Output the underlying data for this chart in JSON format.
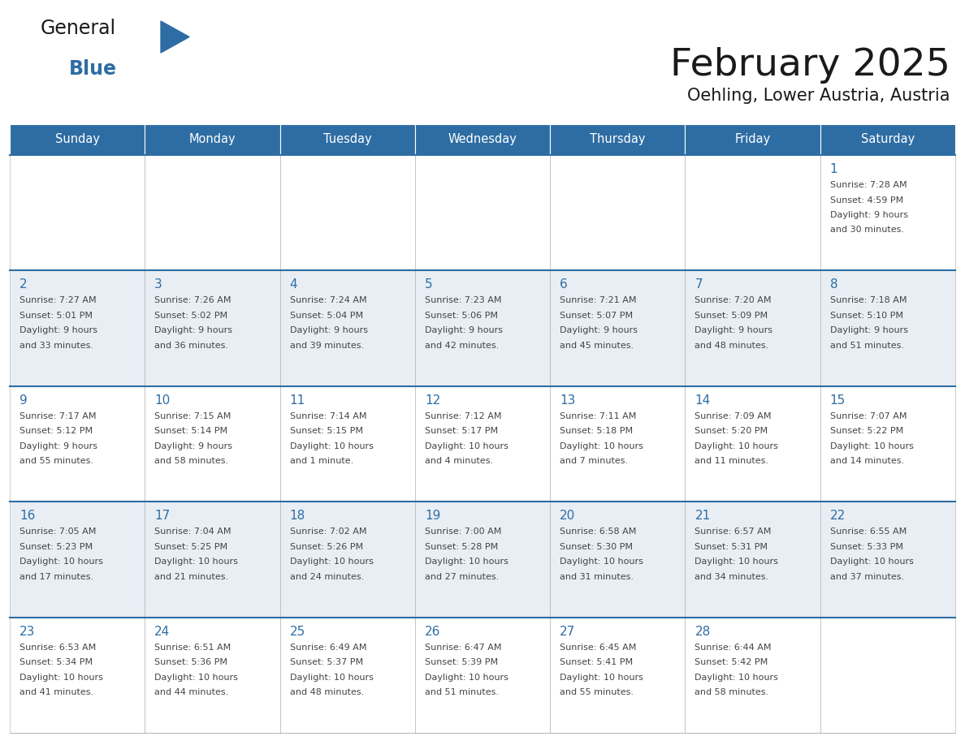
{
  "title": "February 2025",
  "subtitle": "Oehling, Lower Austria, Austria",
  "header_bg": "#2E6DA4",
  "header_text_color": "#FFFFFF",
  "weekdays": [
    "Sunday",
    "Monday",
    "Tuesday",
    "Wednesday",
    "Thursday",
    "Friday",
    "Saturday"
  ],
  "days": [
    {
      "day": 1,
      "col": 6,
      "row": 0,
      "sunrise": "7:28 AM",
      "sunset": "4:59 PM",
      "daylight": "9 hours\nand 30 minutes."
    },
    {
      "day": 2,
      "col": 0,
      "row": 1,
      "sunrise": "7:27 AM",
      "sunset": "5:01 PM",
      "daylight": "9 hours\nand 33 minutes."
    },
    {
      "day": 3,
      "col": 1,
      "row": 1,
      "sunrise": "7:26 AM",
      "sunset": "5:02 PM",
      "daylight": "9 hours\nand 36 minutes."
    },
    {
      "day": 4,
      "col": 2,
      "row": 1,
      "sunrise": "7:24 AM",
      "sunset": "5:04 PM",
      "daylight": "9 hours\nand 39 minutes."
    },
    {
      "day": 5,
      "col": 3,
      "row": 1,
      "sunrise": "7:23 AM",
      "sunset": "5:06 PM",
      "daylight": "9 hours\nand 42 minutes."
    },
    {
      "day": 6,
      "col": 4,
      "row": 1,
      "sunrise": "7:21 AM",
      "sunset": "5:07 PM",
      "daylight": "9 hours\nand 45 minutes."
    },
    {
      "day": 7,
      "col": 5,
      "row": 1,
      "sunrise": "7:20 AM",
      "sunset": "5:09 PM",
      "daylight": "9 hours\nand 48 minutes."
    },
    {
      "day": 8,
      "col": 6,
      "row": 1,
      "sunrise": "7:18 AM",
      "sunset": "5:10 PM",
      "daylight": "9 hours\nand 51 minutes."
    },
    {
      "day": 9,
      "col": 0,
      "row": 2,
      "sunrise": "7:17 AM",
      "sunset": "5:12 PM",
      "daylight": "9 hours\nand 55 minutes."
    },
    {
      "day": 10,
      "col": 1,
      "row": 2,
      "sunrise": "7:15 AM",
      "sunset": "5:14 PM",
      "daylight": "9 hours\nand 58 minutes."
    },
    {
      "day": 11,
      "col": 2,
      "row": 2,
      "sunrise": "7:14 AM",
      "sunset": "5:15 PM",
      "daylight": "10 hours\nand 1 minute."
    },
    {
      "day": 12,
      "col": 3,
      "row": 2,
      "sunrise": "7:12 AM",
      "sunset": "5:17 PM",
      "daylight": "10 hours\nand 4 minutes."
    },
    {
      "day": 13,
      "col": 4,
      "row": 2,
      "sunrise": "7:11 AM",
      "sunset": "5:18 PM",
      "daylight": "10 hours\nand 7 minutes."
    },
    {
      "day": 14,
      "col": 5,
      "row": 2,
      "sunrise": "7:09 AM",
      "sunset": "5:20 PM",
      "daylight": "10 hours\nand 11 minutes."
    },
    {
      "day": 15,
      "col": 6,
      "row": 2,
      "sunrise": "7:07 AM",
      "sunset": "5:22 PM",
      "daylight": "10 hours\nand 14 minutes."
    },
    {
      "day": 16,
      "col": 0,
      "row": 3,
      "sunrise": "7:05 AM",
      "sunset": "5:23 PM",
      "daylight": "10 hours\nand 17 minutes."
    },
    {
      "day": 17,
      "col": 1,
      "row": 3,
      "sunrise": "7:04 AM",
      "sunset": "5:25 PM",
      "daylight": "10 hours\nand 21 minutes."
    },
    {
      "day": 18,
      "col": 2,
      "row": 3,
      "sunrise": "7:02 AM",
      "sunset": "5:26 PM",
      "daylight": "10 hours\nand 24 minutes."
    },
    {
      "day": 19,
      "col": 3,
      "row": 3,
      "sunrise": "7:00 AM",
      "sunset": "5:28 PM",
      "daylight": "10 hours\nand 27 minutes."
    },
    {
      "day": 20,
      "col": 4,
      "row": 3,
      "sunrise": "6:58 AM",
      "sunset": "5:30 PM",
      "daylight": "10 hours\nand 31 minutes."
    },
    {
      "day": 21,
      "col": 5,
      "row": 3,
      "sunrise": "6:57 AM",
      "sunset": "5:31 PM",
      "daylight": "10 hours\nand 34 minutes."
    },
    {
      "day": 22,
      "col": 6,
      "row": 3,
      "sunrise": "6:55 AM",
      "sunset": "5:33 PM",
      "daylight": "10 hours\nand 37 minutes."
    },
    {
      "day": 23,
      "col": 0,
      "row": 4,
      "sunrise": "6:53 AM",
      "sunset": "5:34 PM",
      "daylight": "10 hours\nand 41 minutes."
    },
    {
      "day": 24,
      "col": 1,
      "row": 4,
      "sunrise": "6:51 AM",
      "sunset": "5:36 PM",
      "daylight": "10 hours\nand 44 minutes."
    },
    {
      "day": 25,
      "col": 2,
      "row": 4,
      "sunrise": "6:49 AM",
      "sunset": "5:37 PM",
      "daylight": "10 hours\nand 48 minutes."
    },
    {
      "day": 26,
      "col": 3,
      "row": 4,
      "sunrise": "6:47 AM",
      "sunset": "5:39 PM",
      "daylight": "10 hours\nand 51 minutes."
    },
    {
      "day": 27,
      "col": 4,
      "row": 4,
      "sunrise": "6:45 AM",
      "sunset": "5:41 PM",
      "daylight": "10 hours\nand 55 minutes."
    },
    {
      "day": 28,
      "col": 5,
      "row": 4,
      "sunrise": "6:44 AM",
      "sunset": "5:42 PM",
      "daylight": "10 hours\nand 58 minutes."
    }
  ],
  "row_colors": [
    "#FFFFFF",
    "#E8EEF4",
    "#FFFFFF",
    "#E8EEF4",
    "#FFFFFF"
  ],
  "border_color": "#AAAAAA",
  "row_border_color": "#2E6DA4",
  "day_num_color": "#2E6DA4",
  "text_color": "#444444",
  "logo_general_color": "#1A1A1A",
  "logo_blue_color": "#2E6DA4",
  "num_rows": 5,
  "num_cols": 7
}
